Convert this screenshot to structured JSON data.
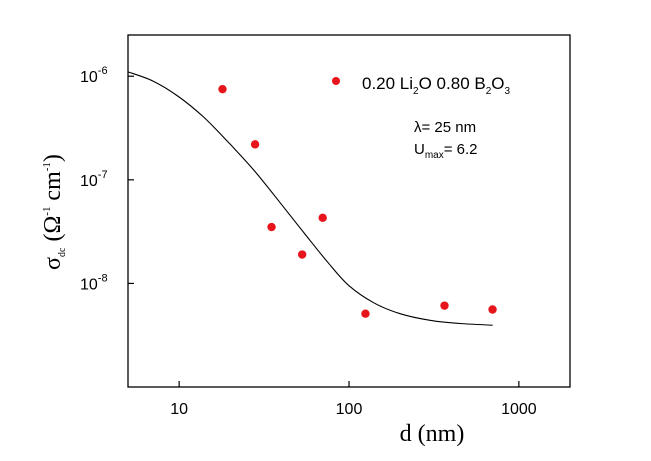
{
  "chart_data": {
    "type": "scatter",
    "xscale": "log",
    "yscale": "log",
    "xlim": [
      5,
      2000
    ],
    "ylim": [
      1e-09,
      2.5e-06
    ],
    "xlabel": {
      "main": "d",
      "unit": "(nm)"
    },
    "ylabel": {
      "sym": "σ",
      "sub": "dc",
      "open": "(Ω",
      "sup1": "-1",
      "mid": " cm",
      "sup2": "-1",
      "close": ")"
    },
    "x_ticks": [
      {
        "value": 10,
        "label": "10"
      },
      {
        "value": 100,
        "label": "100"
      },
      {
        "value": 1000,
        "label": "1000"
      }
    ],
    "y_ticks": [
      {
        "value": 1e-08,
        "base": "10",
        "exp": "-8"
      },
      {
        "value": 1e-07,
        "base": "10",
        "exp": "-7"
      },
      {
        "value": 1e-06,
        "base": "10",
        "exp": "-6"
      }
    ],
    "series": [
      {
        "kind": "points",
        "color": "#e8141b",
        "points": [
          {
            "x": 18,
            "y": 7.5e-07
          },
          {
            "x": 28,
            "y": 2.2e-07
          },
          {
            "x": 35,
            "y": 3.5e-08
          },
          {
            "x": 53,
            "y": 1.9e-08
          },
          {
            "x": 70,
            "y": 4.3e-08
          },
          {
            "x": 125,
            "y": 5.1e-09
          },
          {
            "x": 365,
            "y": 6.1e-09
          },
          {
            "x": 700,
            "y": 5.6e-09
          }
        ]
      },
      {
        "kind": "line",
        "color": "#000000",
        "points": [
          {
            "x": 5,
            "y": 1.1e-06
          },
          {
            "x": 7,
            "y": 9e-07
          },
          {
            "x": 10,
            "y": 6.3e-07
          },
          {
            "x": 14,
            "y": 4e-07
          },
          {
            "x": 20,
            "y": 2.2e-07
          },
          {
            "x": 28,
            "y": 1.2e-07
          },
          {
            "x": 40,
            "y": 5.8e-08
          },
          {
            "x": 55,
            "y": 3e-08
          },
          {
            "x": 75,
            "y": 1.6e-08
          },
          {
            "x": 100,
            "y": 9.5e-09
          },
          {
            "x": 140,
            "y": 6.5e-09
          },
          {
            "x": 200,
            "y": 5.1e-09
          },
          {
            "x": 300,
            "y": 4.4e-09
          },
          {
            "x": 450,
            "y": 4.1e-09
          },
          {
            "x": 700,
            "y": 3.95e-09
          }
        ]
      }
    ],
    "legend": {
      "placement": "top-right",
      "parts": [
        "0.20 Li",
        "2",
        "O  0.80 B",
        "2",
        "O",
        "3"
      ]
    },
    "annotations": {
      "lambda": "λ= 25 nm",
      "umax_main": "U",
      "umax_sub": "max",
      "umax_val": "= 6.2"
    },
    "grid": false
  }
}
